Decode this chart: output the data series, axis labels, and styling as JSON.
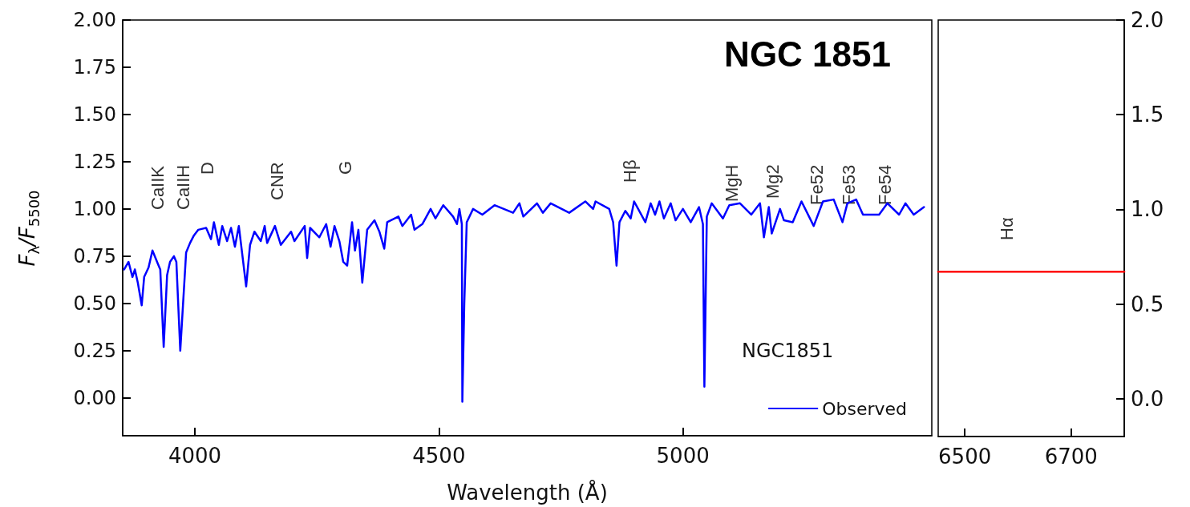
{
  "chart_data": [
    {
      "type": "line",
      "title": "NGC 1851",
      "xlabel": "Wavelength (Å)",
      "ylabel": "F$_{λ}$/F$_{5500}$",
      "xlim": [
        3852,
        5510
      ],
      "xticks": [
        4000,
        4500,
        5000
      ],
      "ylim": [
        -0.2,
        2.0
      ],
      "yticks": [
        {
          "value": 0,
          "label": "0.00"
        },
        {
          "value": 0.25,
          "label": "0.25"
        },
        {
          "value": 0.5,
          "label": "0.50"
        },
        {
          "value": 0.75,
          "label": "0.75"
        },
        {
          "value": 1,
          "label": "1.00"
        },
        {
          "value": 1.25,
          "label": "1.25"
        },
        {
          "value": 1.5,
          "label": "1.50"
        },
        {
          "value": 1.75,
          "label": "1.75"
        },
        {
          "value": 2,
          "label": "2.00"
        }
      ],
      "grid": false,
      "legend": "bottom right",
      "marker": "none",
      "line_style": "solid",
      "annotations": [
        "CaIIK",
        "CaIIH",
        "D",
        "CNR",
        "G",
        "Hβ",
        "MgH",
        "Mg2",
        "Fe52",
        "Fe53",
        "Fe54",
        "NGC1851"
      ],
      "series": [
        {
          "name": "Observed",
          "color": "#0000ff",
          "x": [
            3855,
            3864,
            3872,
            3877,
            3883,
            3891,
            3896,
            3905,
            3913,
            3924,
            3929,
            3936,
            3943,
            3949,
            3957,
            3962,
            3970,
            3982,
            3990,
            3998,
            4007,
            4023,
            4033,
            4039,
            4049,
            4056,
            4066,
            4074,
            4082,
            4090,
            4105,
            4113,
            4122,
            4135,
            4143,
            4148,
            4164,
            4176,
            4197,
            4204,
            4225,
            4230,
            4236,
            4255,
            4269,
            4278,
            4286,
            4296,
            4304,
            4312,
            4322,
            4328,
            4335,
            4343,
            4353,
            4368,
            4378,
            4388,
            4394,
            4417,
            4425,
            4443,
            4450,
            4466,
            4483,
            4493,
            4509,
            4529,
            4537,
            4542,
            4547,
            4548,
            4552,
            4557,
            4570,
            4589,
            4614,
            4652,
            4665,
            4673,
            4701,
            4713,
            4729,
            4767,
            4800,
            4816,
            4821,
            4849,
            4857,
            4864,
            4870,
            4882,
            4893,
            4900,
            4923,
            4934,
            4943,
            4952,
            4961,
            4975,
            4985,
            5000,
            5016,
            5033,
            5041,
            5044,
            5049,
            5059,
            5082,
            5095,
            5117,
            5140,
            5158,
            5166,
            5176,
            5182,
            5199,
            5207,
            5225,
            5243,
            5268,
            5287,
            5309,
            5327,
            5337,
            5355,
            5369,
            5402,
            5419,
            5443,
            5456,
            5473,
            5494
          ],
          "values": [
            0.68,
            0.72,
            0.64,
            0.68,
            0.61,
            0.49,
            0.64,
            0.69,
            0.78,
            0.71,
            0.68,
            0.27,
            0.65,
            0.72,
            0.75,
            0.72,
            0.25,
            0.77,
            0.82,
            0.86,
            0.89,
            0.9,
            0.84,
            0.93,
            0.81,
            0.91,
            0.83,
            0.9,
            0.8,
            0.91,
            0.59,
            0.81,
            0.88,
            0.83,
            0.91,
            0.82,
            0.91,
            0.81,
            0.88,
            0.83,
            0.91,
            0.74,
            0.9,
            0.85,
            0.92,
            0.8,
            0.91,
            0.83,
            0.72,
            0.7,
            0.93,
            0.78,
            0.89,
            0.61,
            0.89,
            0.94,
            0.88,
            0.79,
            0.93,
            0.96,
            0.91,
            0.97,
            0.89,
            0.92,
            1.0,
            0.95,
            1.02,
            0.96,
            0.92,
            1.0,
            0.92,
            -0.02,
            0.5,
            0.93,
            1.0,
            0.97,
            1.02,
            0.98,
            1.03,
            0.96,
            1.03,
            0.98,
            1.03,
            0.98,
            1.04,
            1.0,
            1.04,
            1.0,
            0.93,
            0.7,
            0.93,
            0.99,
            0.95,
            1.04,
            0.93,
            1.03,
            0.97,
            1.04,
            0.95,
            1.03,
            0.94,
            1.0,
            0.93,
            1.01,
            0.92,
            0.06,
            0.96,
            1.03,
            0.95,
            1.02,
            1.03,
            0.97,
            1.03,
            0.85,
            1.01,
            0.87,
            1.0,
            0.94,
            0.93,
            1.04,
            0.91,
            1.04,
            1.05,
            0.93,
            1.03,
            1.05,
            0.97,
            0.97,
            1.03,
            0.97,
            1.03,
            0.97,
            1.01
          ]
        }
      ]
    },
    {
      "type": "line",
      "xlim": [
        6450,
        6800
      ],
      "xticks": [
        6500,
        6700
      ],
      "ylim": [
        -0.2,
        2.0
      ],
      "yticks": [
        {
          "value": 0,
          "label": "0.0"
        },
        {
          "value": 0.5,
          "label": "0.5"
        },
        {
          "value": 1,
          "label": "1.0"
        },
        {
          "value": 1.5,
          "label": "1.5"
        },
        {
          "value": 2,
          "label": "2.0"
        }
      ],
      "grid": false,
      "marker": "none",
      "line_style": "solid",
      "annotations": [
        "Hα"
      ],
      "series": [
        {
          "color": "#ff0000",
          "x": [
            6450,
            6800
          ],
          "values": [
            0.67,
            0.67
          ]
        }
      ]
    }
  ]
}
